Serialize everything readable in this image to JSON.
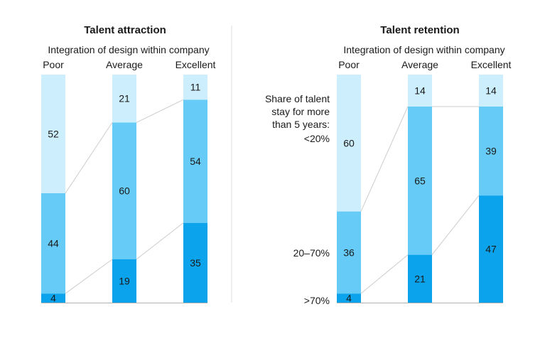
{
  "colors": {
    "light": "#cdeefc",
    "mid": "#66cbf6",
    "dark": "#0ba3ec",
    "panel_divider": "#dddddd",
    "baseline": "#b0b0b0",
    "connector": "#cccccc"
  },
  "legend": {
    "heading_line1": "Share of talent",
    "heading_line2": "stay for more",
    "heading_line3": "than 5 years:",
    "low": "<20%",
    "mid": "20–70%",
    "high": ">70%"
  },
  "chart_data": [
    {
      "type": "bar",
      "stacked": true,
      "title": "Talent attraction",
      "subtitle": "Integration of design within company",
      "categories": [
        "Poor",
        "Average",
        "Excellent"
      ],
      "series": [
        {
          "name": ">70%",
          "values": [
            4,
            19,
            35
          ]
        },
        {
          "name": "20–70%",
          "values": [
            44,
            60,
            54
          ]
        },
        {
          "name": "<20%",
          "values": [
            52,
            21,
            11
          ]
        }
      ],
      "ylim": [
        0,
        100
      ]
    },
    {
      "type": "bar",
      "stacked": true,
      "title": "Talent retention",
      "subtitle": "Integration of design within company",
      "categories": [
        "Poor",
        "Average",
        "Excellent"
      ],
      "series": [
        {
          "name": ">70%",
          "values": [
            4,
            21,
            47
          ]
        },
        {
          "name": "20–70%",
          "values": [
            36,
            65,
            39
          ]
        },
        {
          "name": "<20%",
          "values": [
            60,
            14,
            14
          ]
        }
      ],
      "ylim": [
        0,
        100
      ]
    }
  ]
}
